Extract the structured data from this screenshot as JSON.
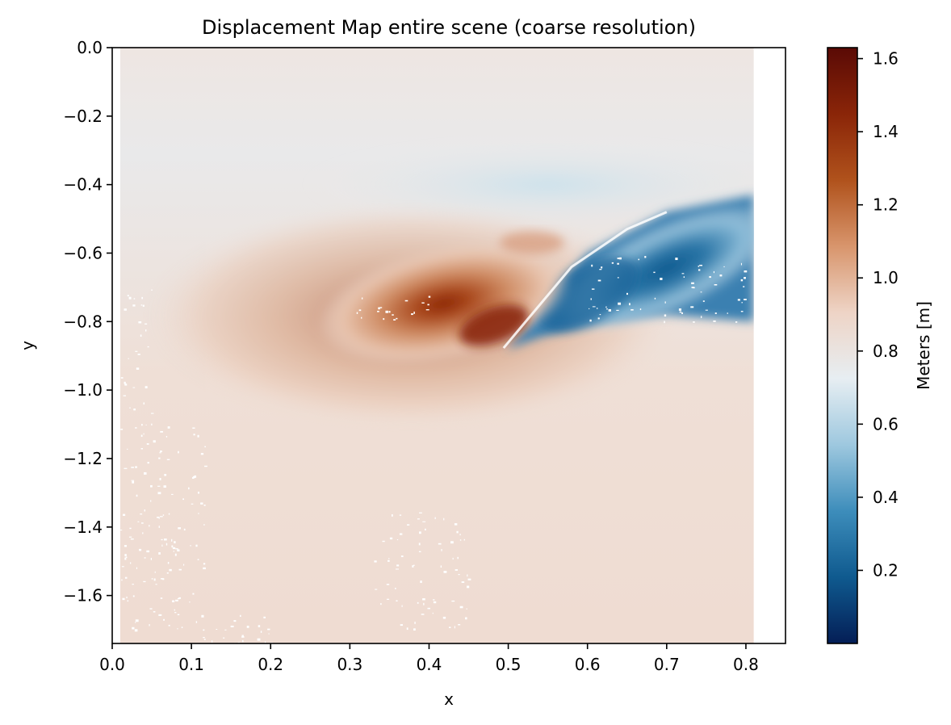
{
  "chart_data": {
    "type": "heatmap",
    "title": "Displacement Map entire scene (coarse resolution)",
    "xlabel": "x",
    "ylabel": "y",
    "xlim": [
      0.0,
      0.85
    ],
    "ylim": [
      -1.74,
      0.0
    ],
    "x_ticks": [
      {
        "value": 0.0,
        "label": "0.0"
      },
      {
        "value": 0.1,
        "label": "0.1"
      },
      {
        "value": 0.2,
        "label": "0.2"
      },
      {
        "value": 0.3,
        "label": "0.3"
      },
      {
        "value": 0.4,
        "label": "0.4"
      },
      {
        "value": 0.5,
        "label": "0.5"
      },
      {
        "value": 0.6,
        "label": "0.6"
      },
      {
        "value": 0.7,
        "label": "0.7"
      },
      {
        "value": 0.8,
        "label": "0.8"
      }
    ],
    "y_ticks": [
      {
        "value": 0.0,
        "label": "0.0"
      },
      {
        "value": -0.2,
        "label": "−0.2"
      },
      {
        "value": -0.4,
        "label": "−0.4"
      },
      {
        "value": -0.6,
        "label": "−0.6"
      },
      {
        "value": -0.8,
        "label": "−0.8"
      },
      {
        "value": -1.0,
        "label": "−1.0"
      },
      {
        "value": -1.2,
        "label": "−1.2"
      },
      {
        "value": -1.4,
        "label": "−1.4"
      },
      {
        "value": -1.6,
        "label": "−1.6"
      }
    ],
    "data_extent": {
      "x": [
        0.01,
        0.81
      ],
      "y": [
        -1.74,
        0.0
      ]
    },
    "background_value": 0.83,
    "features": [
      {
        "kind": "max_lobe",
        "x": 0.49,
        "y": -0.83,
        "value": 1.62
      },
      {
        "kind": "min_lobe",
        "x": 0.7,
        "y": -0.55,
        "value": 0.25
      }
    ],
    "colorbar": {
      "label": "Meters [m]",
      "range": [
        0.0,
        1.63
      ],
      "ticks": [
        {
          "value": 0.2,
          "label": "0.2"
        },
        {
          "value": 0.4,
          "label": "0.4"
        },
        {
          "value": 0.6,
          "label": "0.6"
        },
        {
          "value": 0.8,
          "label": "0.8"
        },
        {
          "value": 1.0,
          "label": "1.0"
        },
        {
          "value": 1.2,
          "label": "1.2"
        },
        {
          "value": 1.4,
          "label": "1.4"
        },
        {
          "value": 1.6,
          "label": "1.6"
        }
      ],
      "colors": [
        "#041e56",
        "#0f5a8f",
        "#3d8dbb",
        "#9ec8df",
        "#e7eef2",
        "#eed4c6",
        "#d8956c",
        "#b0521c",
        "#8a2508",
        "#5a0a05"
      ]
    }
  }
}
